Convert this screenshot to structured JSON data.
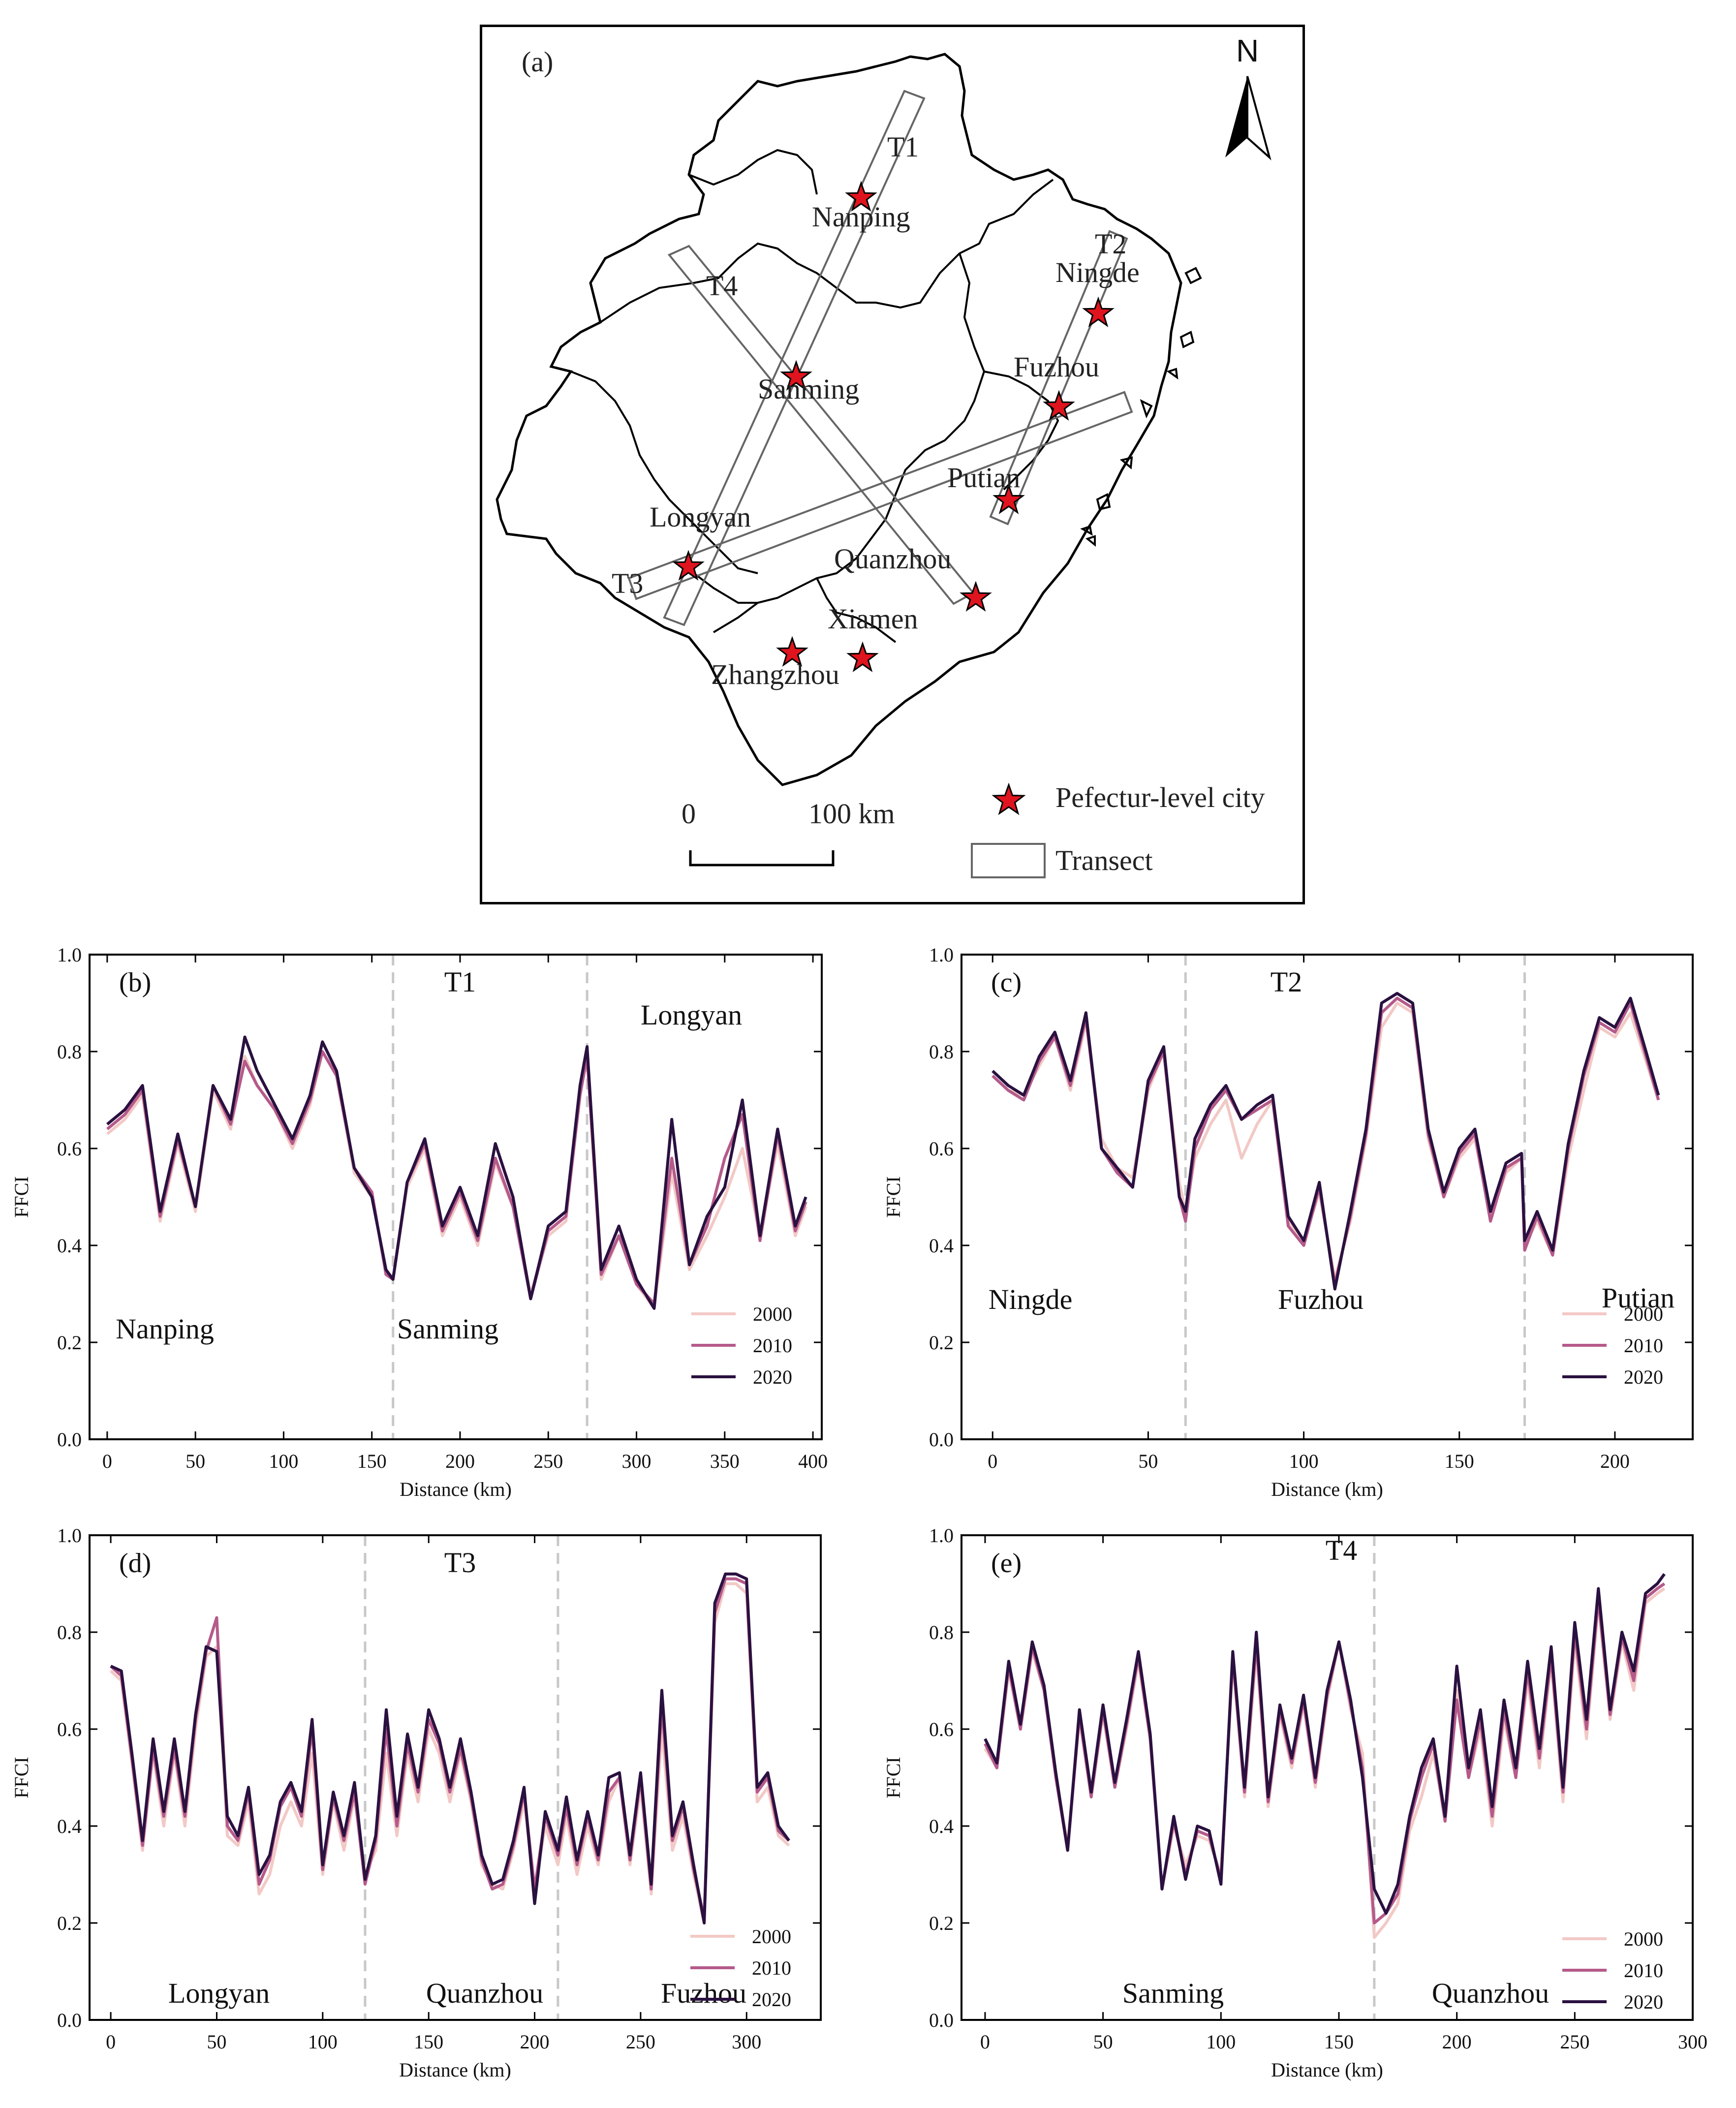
{
  "map": {
    "panel_label": "(a)",
    "north_label": "N",
    "transects": [
      "T1",
      "T2",
      "T3",
      "T4"
    ],
    "cities": [
      "Nanping",
      "Ningde",
      "Fuzhou",
      "Sanming",
      "Putian",
      "Longyan",
      "Quanzhou",
      "Xiamen",
      "Zhangzhou"
    ],
    "scale_start": "0",
    "scale_end": "100 km",
    "legend": {
      "city": "Pefectur-level city",
      "transect": "Transect"
    },
    "colors": {
      "star": "#e0141e",
      "transect": "#666666",
      "boundary": "#000000"
    }
  },
  "chart_data": [
    {
      "type": "line",
      "panel": "(b)",
      "transect": "T1",
      "title": "T1",
      "xlabel": "Distance (km)",
      "ylabel": "FFCI",
      "xlim": [
        -10,
        405
      ],
      "ylim": [
        0,
        1
      ],
      "xticks": [
        "0",
        "50",
        "100",
        "150",
        "200",
        "250",
        "300",
        "350",
        "400"
      ],
      "yticks": [
        "0.0",
        "0.2",
        "0.4",
        "0.6",
        "0.8",
        "1.0"
      ],
      "boundaries": [
        162,
        272
      ],
      "region_labels": [
        "Nanping",
        "Sanming",
        "Longyan"
      ],
      "x": [
        0,
        10,
        20,
        30,
        40,
        50,
        60,
        70,
        78,
        85,
        95,
        105,
        115,
        122,
        130,
        140,
        150,
        158,
        162,
        170,
        180,
        190,
        200,
        210,
        220,
        230,
        240,
        250,
        260,
        268,
        272,
        280,
        290,
        300,
        310,
        320,
        330,
        340,
        350,
        360,
        370,
        380,
        390,
        396
      ],
      "series": [
        {
          "name": "2000",
          "color": "#f2c9c6",
          "values": [
            0.63,
            0.66,
            0.71,
            0.45,
            0.61,
            0.47,
            0.72,
            0.64,
            0.79,
            0.73,
            0.68,
            0.6,
            0.69,
            0.8,
            0.75,
            0.55,
            0.5,
            0.35,
            0.33,
            0.52,
            0.6,
            0.42,
            0.5,
            0.4,
            0.57,
            0.48,
            0.3,
            0.42,
            0.45,
            0.72,
            0.79,
            0.33,
            0.42,
            0.32,
            0.27,
            0.55,
            0.35,
            0.42,
            0.5,
            0.6,
            0.42,
            0.61,
            0.42,
            0.48
          ]
        },
        {
          "name": "2010",
          "color": "#b55a8a",
          "values": [
            0.64,
            0.67,
            0.72,
            0.46,
            0.62,
            0.48,
            0.73,
            0.65,
            0.78,
            0.73,
            0.68,
            0.61,
            0.7,
            0.8,
            0.75,
            0.56,
            0.51,
            0.34,
            0.33,
            0.53,
            0.61,
            0.43,
            0.51,
            0.41,
            0.58,
            0.48,
            0.29,
            0.43,
            0.46,
            0.71,
            0.79,
            0.34,
            0.42,
            0.32,
            0.28,
            0.58,
            0.36,
            0.44,
            0.58,
            0.67,
            0.41,
            0.63,
            0.43,
            0.49
          ]
        },
        {
          "name": "2020",
          "color": "#2a1140",
          "values": [
            0.65,
            0.68,
            0.73,
            0.47,
            0.63,
            0.48,
            0.73,
            0.66,
            0.83,
            0.76,
            0.69,
            0.62,
            0.71,
            0.82,
            0.76,
            0.56,
            0.5,
            0.35,
            0.33,
            0.53,
            0.62,
            0.44,
            0.52,
            0.42,
            0.61,
            0.5,
            0.29,
            0.44,
            0.47,
            0.73,
            0.81,
            0.35,
            0.44,
            0.33,
            0.27,
            0.66,
            0.36,
            0.46,
            0.52,
            0.7,
            0.42,
            0.64,
            0.44,
            0.5
          ]
        }
      ],
      "legend": [
        "2000",
        "2010",
        "2020"
      ]
    },
    {
      "type": "line",
      "panel": "(c)",
      "transect": "T2",
      "title": "T2",
      "xlabel": "Distance (km)",
      "ylabel": "FFCI",
      "xlim": [
        -10,
        225
      ],
      "ylim": [
        0,
        1
      ],
      "xticks": [
        "0",
        "50",
        "100",
        "150",
        "200"
      ],
      "yticks": [
        "0.0",
        "0.2",
        "0.4",
        "0.6",
        "0.8",
        "1.0"
      ],
      "boundaries": [
        62,
        171
      ],
      "region_labels": [
        "Ningde",
        "Fuzhou",
        "Putian"
      ],
      "x": [
        0,
        5,
        10,
        15,
        20,
        25,
        30,
        35,
        40,
        45,
        50,
        55,
        60,
        62,
        65,
        70,
        75,
        80,
        85,
        90,
        95,
        100,
        105,
        110,
        115,
        120,
        125,
        130,
        135,
        140,
        145,
        150,
        155,
        160,
        165,
        170,
        171,
        175,
        180,
        185,
        190,
        195,
        200,
        205,
        210,
        214
      ],
      "series": [
        {
          "name": "2000",
          "color": "#f2c9c6",
          "values": [
            0.75,
            0.72,
            0.71,
            0.77,
            0.83,
            0.72,
            0.86,
            0.62,
            0.56,
            0.54,
            0.72,
            0.8,
            0.53,
            0.47,
            0.58,
            0.65,
            0.7,
            0.58,
            0.65,
            0.7,
            0.45,
            0.41,
            0.51,
            0.33,
            0.45,
            0.62,
            0.85,
            0.9,
            0.88,
            0.62,
            0.5,
            0.58,
            0.62,
            0.46,
            0.55,
            0.58,
            0.4,
            0.45,
            0.38,
            0.58,
            0.72,
            0.85,
            0.83,
            0.88,
            0.78,
            0.7
          ]
        },
        {
          "name": "2010",
          "color": "#b55a8a",
          "values": [
            0.75,
            0.72,
            0.7,
            0.78,
            0.83,
            0.73,
            0.87,
            0.6,
            0.55,
            0.52,
            0.73,
            0.8,
            0.5,
            0.45,
            0.6,
            0.68,
            0.72,
            0.66,
            0.68,
            0.7,
            0.44,
            0.4,
            0.52,
            0.32,
            0.46,
            0.63,
            0.88,
            0.91,
            0.89,
            0.63,
            0.5,
            0.59,
            0.63,
            0.45,
            0.56,
            0.58,
            0.39,
            0.46,
            0.38,
            0.6,
            0.75,
            0.86,
            0.84,
            0.9,
            0.79,
            0.7
          ]
        },
        {
          "name": "2020",
          "color": "#2a1140",
          "values": [
            0.76,
            0.73,
            0.71,
            0.79,
            0.84,
            0.74,
            0.88,
            0.6,
            0.56,
            0.52,
            0.74,
            0.81,
            0.5,
            0.47,
            0.62,
            0.69,
            0.73,
            0.66,
            0.69,
            0.71,
            0.46,
            0.41,
            0.53,
            0.31,
            0.47,
            0.64,
            0.9,
            0.92,
            0.9,
            0.64,
            0.51,
            0.6,
            0.64,
            0.47,
            0.57,
            0.59,
            0.41,
            0.47,
            0.39,
            0.61,
            0.76,
            0.87,
            0.85,
            0.91,
            0.8,
            0.71
          ]
        }
      ],
      "legend": [
        "2000",
        "2010",
        "2020"
      ]
    },
    {
      "type": "line",
      "panel": "(d)",
      "transect": "T3",
      "title": "T3",
      "xlabel": "Distance (km)",
      "ylabel": "FFCI",
      "xlim": [
        -10,
        335
      ],
      "ylim": [
        0,
        1
      ],
      "xticks": [
        "0",
        "50",
        "100",
        "150",
        "200",
        "250",
        "300"
      ],
      "yticks": [
        "0.0",
        "0.2",
        "0.4",
        "0.6",
        "0.8",
        "1.0"
      ],
      "boundaries": [
        120,
        211
      ],
      "region_labels": [
        "Longyan",
        "Quanzhou",
        "Fuzhou"
      ],
      "x": [
        0,
        5,
        10,
        15,
        20,
        25,
        30,
        35,
        40,
        45,
        50,
        55,
        60,
        65,
        70,
        75,
        80,
        85,
        90,
        95,
        100,
        105,
        110,
        115,
        120,
        125,
        130,
        135,
        140,
        145,
        150,
        155,
        160,
        165,
        170,
        175,
        180,
        185,
        190,
        195,
        200,
        205,
        211,
        215,
        220,
        225,
        230,
        235,
        240,
        245,
        250,
        255,
        260,
        265,
        270,
        275,
        280,
        285,
        290,
        295,
        300,
        305,
        310,
        315,
        320
      ],
      "series": [
        {
          "name": "2000",
          "color": "#f2c9c6",
          "values": [
            0.72,
            0.7,
            0.53,
            0.35,
            0.55,
            0.4,
            0.55,
            0.4,
            0.6,
            0.75,
            0.77,
            0.38,
            0.36,
            0.45,
            0.26,
            0.3,
            0.4,
            0.45,
            0.4,
            0.55,
            0.3,
            0.45,
            0.35,
            0.46,
            0.3,
            0.35,
            0.55,
            0.38,
            0.55,
            0.45,
            0.6,
            0.55,
            0.45,
            0.55,
            0.45,
            0.32,
            0.28,
            0.27,
            0.35,
            0.45,
            0.27,
            0.4,
            0.32,
            0.42,
            0.3,
            0.4,
            0.32,
            0.45,
            0.5,
            0.32,
            0.48,
            0.26,
            0.6,
            0.35,
            0.42,
            0.3,
            0.2,
            0.82,
            0.9,
            0.9,
            0.88,
            0.45,
            0.48,
            0.38,
            0.36
          ]
        },
        {
          "name": "2010",
          "color": "#b55a8a",
          "values": [
            0.73,
            0.71,
            0.54,
            0.36,
            0.56,
            0.42,
            0.56,
            0.42,
            0.62,
            0.76,
            0.83,
            0.4,
            0.37,
            0.47,
            0.28,
            0.33,
            0.44,
            0.48,
            0.42,
            0.6,
            0.31,
            0.46,
            0.37,
            0.47,
            0.28,
            0.37,
            0.6,
            0.4,
            0.57,
            0.47,
            0.62,
            0.57,
            0.47,
            0.56,
            0.46,
            0.33,
            0.27,
            0.28,
            0.36,
            0.47,
            0.27,
            0.42,
            0.34,
            0.44,
            0.32,
            0.42,
            0.33,
            0.47,
            0.5,
            0.33,
            0.5,
            0.27,
            0.65,
            0.37,
            0.44,
            0.31,
            0.21,
            0.84,
            0.91,
            0.91,
            0.9,
            0.47,
            0.5,
            0.39,
            0.37
          ]
        },
        {
          "name": "2020",
          "color": "#2a1140",
          "values": [
            0.73,
            0.72,
            0.55,
            0.37,
            0.58,
            0.43,
            0.58,
            0.43,
            0.63,
            0.77,
            0.76,
            0.42,
            0.38,
            0.48,
            0.3,
            0.34,
            0.45,
            0.49,
            0.43,
            0.62,
            0.32,
            0.47,
            0.38,
            0.49,
            0.29,
            0.38,
            0.64,
            0.42,
            0.59,
            0.48,
            0.64,
            0.58,
            0.48,
            0.58,
            0.47,
            0.34,
            0.28,
            0.29,
            0.37,
            0.48,
            0.24,
            0.43,
            0.35,
            0.46,
            0.33,
            0.43,
            0.34,
            0.5,
            0.51,
            0.34,
            0.51,
            0.28,
            0.68,
            0.38,
            0.45,
            0.32,
            0.2,
            0.86,
            0.92,
            0.92,
            0.91,
            0.48,
            0.51,
            0.4,
            0.37
          ]
        }
      ],
      "legend": [
        "2000",
        "2010",
        "2020"
      ]
    },
    {
      "type": "line",
      "panel": "(e)",
      "transect": "T4",
      "title": "T4",
      "xlabel": "Distance (km)",
      "ylabel": "FFCI",
      "xlim": [
        -10,
        300
      ],
      "ylim": [
        0,
        1
      ],
      "xticks": [
        "0",
        "50",
        "100",
        "150",
        "200",
        "250",
        "300"
      ],
      "yticks": [
        "0.0",
        "0.2",
        "0.4",
        "0.6",
        "0.8",
        "1.0"
      ],
      "boundaries": [
        165
      ],
      "region_labels": [
        "Sanming",
        "Quanzhou"
      ],
      "x": [
        0,
        5,
        10,
        15,
        20,
        25,
        30,
        35,
        40,
        45,
        50,
        55,
        60,
        65,
        70,
        75,
        80,
        85,
        90,
        95,
        100,
        105,
        110,
        115,
        120,
        125,
        130,
        135,
        140,
        145,
        150,
        155,
        160,
        165,
        170,
        175,
        180,
        185,
        190,
        195,
        200,
        205,
        210,
        215,
        220,
        225,
        230,
        235,
        240,
        245,
        250,
        255,
        260,
        265,
        270,
        275,
        280,
        285,
        288
      ],
      "series": [
        {
          "name": "2000",
          "color": "#f2c9c6",
          "values": [
            0.56,
            0.52,
            0.72,
            0.6,
            0.76,
            0.68,
            0.5,
            0.36,
            0.62,
            0.46,
            0.63,
            0.48,
            0.6,
            0.74,
            0.58,
            0.27,
            0.4,
            0.32,
            0.38,
            0.37,
            0.3,
            0.74,
            0.46,
            0.76,
            0.44,
            0.63,
            0.52,
            0.65,
            0.48,
            0.66,
            0.78,
            0.64,
            0.55,
            0.17,
            0.2,
            0.24,
            0.39,
            0.46,
            0.55,
            0.42,
            0.68,
            0.5,
            0.6,
            0.4,
            0.62,
            0.5,
            0.7,
            0.52,
            0.74,
            0.45,
            0.78,
            0.58,
            0.86,
            0.62,
            0.78,
            0.68,
            0.86,
            0.88,
            0.89
          ]
        },
        {
          "name": "2010",
          "color": "#b55a8a",
          "values": [
            0.57,
            0.52,
            0.73,
            0.6,
            0.77,
            0.68,
            0.5,
            0.35,
            0.63,
            0.46,
            0.64,
            0.48,
            0.61,
            0.75,
            0.58,
            0.27,
            0.41,
            0.3,
            0.39,
            0.38,
            0.29,
            0.75,
            0.47,
            0.78,
            0.45,
            0.64,
            0.53,
            0.66,
            0.49,
            0.67,
            0.78,
            0.65,
            0.52,
            0.2,
            0.22,
            0.26,
            0.41,
            0.5,
            0.57,
            0.41,
            0.66,
            0.5,
            0.62,
            0.42,
            0.64,
            0.5,
            0.72,
            0.54,
            0.75,
            0.47,
            0.8,
            0.6,
            0.87,
            0.63,
            0.79,
            0.7,
            0.87,
            0.89,
            0.9
          ]
        },
        {
          "name": "2020",
          "color": "#2a1140",
          "values": [
            0.58,
            0.53,
            0.74,
            0.61,
            0.78,
            0.69,
            0.51,
            0.35,
            0.64,
            0.47,
            0.65,
            0.49,
            0.62,
            0.76,
            0.59,
            0.27,
            0.42,
            0.29,
            0.4,
            0.39,
            0.28,
            0.76,
            0.48,
            0.8,
            0.46,
            0.65,
            0.54,
            0.67,
            0.5,
            0.68,
            0.78,
            0.66,
            0.5,
            0.27,
            0.22,
            0.28,
            0.42,
            0.52,
            0.58,
            0.42,
            0.73,
            0.52,
            0.64,
            0.44,
            0.66,
            0.52,
            0.74,
            0.56,
            0.77,
            0.48,
            0.82,
            0.62,
            0.89,
            0.64,
            0.8,
            0.72,
            0.88,
            0.9,
            0.92
          ]
        }
      ],
      "legend": [
        "2000",
        "2010",
        "2020"
      ]
    }
  ]
}
